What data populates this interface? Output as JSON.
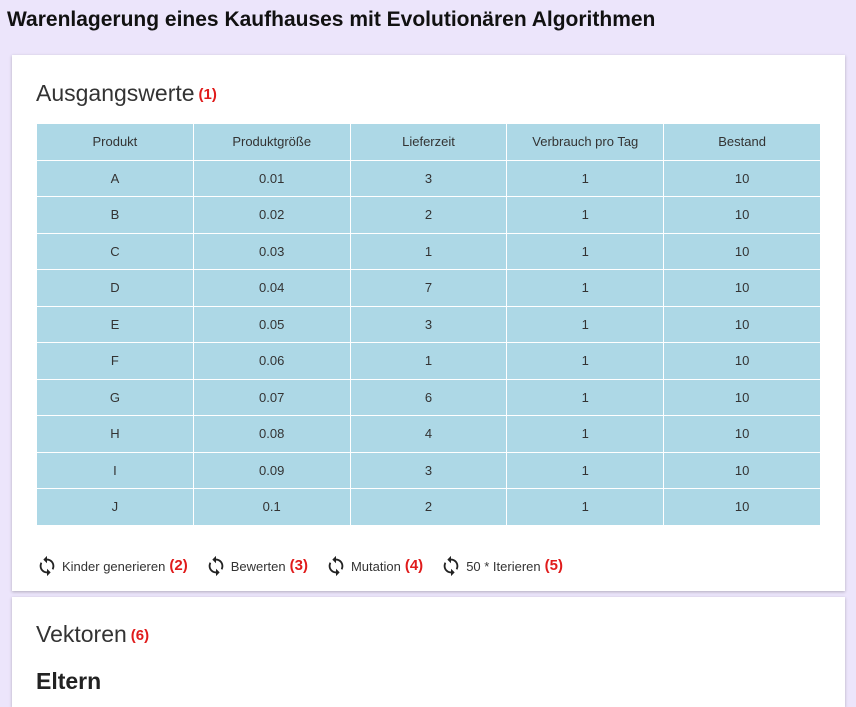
{
  "page": {
    "title": "Warenlagerung eines Kaufhauses mit Evolutionären Algorithmen"
  },
  "initial_values": {
    "title": "Ausgangswerte",
    "marker": "(1)",
    "columns": [
      "Produkt",
      "Produktgröße",
      "Lieferzeit",
      "Verbrauch pro Tag",
      "Bestand"
    ],
    "rows": [
      [
        "A",
        "0.01",
        "3",
        "1",
        "10"
      ],
      [
        "B",
        "0.02",
        "2",
        "1",
        "10"
      ],
      [
        "C",
        "0.03",
        "1",
        "1",
        "10"
      ],
      [
        "D",
        "0.04",
        "7",
        "1",
        "10"
      ],
      [
        "E",
        "0.05",
        "3",
        "1",
        "10"
      ],
      [
        "F",
        "0.06",
        "1",
        "1",
        "10"
      ],
      [
        "G",
        "0.07",
        "6",
        "1",
        "10"
      ],
      [
        "H",
        "0.08",
        "4",
        "1",
        "10"
      ],
      [
        "I",
        "0.09",
        "3",
        "1",
        "10"
      ],
      [
        "J",
        "0.1",
        "2",
        "1",
        "10"
      ]
    ],
    "actions": [
      {
        "label": "Kinder generieren",
        "marker": "(2)",
        "icon": "refresh-icon"
      },
      {
        "label": "Bewerten",
        "marker": "(3)",
        "icon": "refresh-icon"
      },
      {
        "label": "Mutation",
        "marker": "(4)",
        "icon": "refresh-icon"
      },
      {
        "label": "50 * Iterieren",
        "marker": "(5)",
        "icon": "refresh-icon"
      }
    ]
  },
  "vectors": {
    "title": "Vektoren",
    "marker": "(6)",
    "parents_title": "Eltern"
  },
  "colors": {
    "background": "#ece5fb",
    "table_fill": "#add8e6",
    "marker_red": "#e01b1b"
  }
}
